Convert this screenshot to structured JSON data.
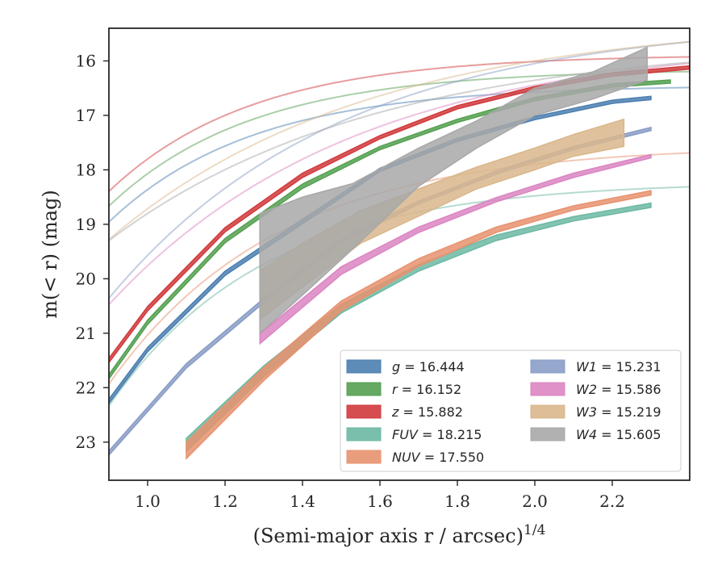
{
  "chart_data": {
    "type": "line",
    "title": "",
    "xlabel": "(Semi-major axis r / arcsec)",
    "xlabel_exponent": "1/4",
    "ylabel": "m(< r) (mag)",
    "xlim": [
      0.9,
      2.4
    ],
    "ylim": [
      23.7,
      15.4
    ],
    "y_inverted": true,
    "grid": false,
    "legend_position": "lower-right",
    "legend_columns": 2,
    "x_ticks": [
      1.0,
      1.2,
      1.4,
      1.6,
      1.8,
      2.0,
      2.2
    ],
    "x_tick_labels": [
      "1.0",
      "1.2",
      "1.4",
      "1.6",
      "1.8",
      "2.0",
      "2.2"
    ],
    "y_ticks": [
      16,
      17,
      18,
      19,
      20,
      21,
      22,
      23
    ],
    "y_tick_labels": [
      "16",
      "17",
      "18",
      "19",
      "20",
      "21",
      "22",
      "23"
    ],
    "series": [
      {
        "name": "g",
        "legend_value": "16.444",
        "color": "#4c7fb0",
        "model_asymptote": 16.444,
        "model_amplitude": 7.4,
        "model_rate": 2.7,
        "data_x": [
          0.9,
          1.0,
          1.2,
          1.4,
          1.6,
          1.8,
          2.0,
          2.2,
          2.3
        ],
        "data_y": [
          22.25,
          21.3,
          19.9,
          18.95,
          18.0,
          17.45,
          17.05,
          16.75,
          16.68
        ],
        "data_err": [
          0.04,
          0.04,
          0.04,
          0.04,
          0.03,
          0.03,
          0.03,
          0.03,
          0.03
        ]
      },
      {
        "name": "r",
        "legend_value": "16.152",
        "color": "#55a051",
        "model_asymptote": 16.152,
        "model_amplitude": 7.4,
        "model_rate": 2.7,
        "data_x": [
          0.9,
          1.0,
          1.2,
          1.4,
          1.6,
          1.8,
          2.0,
          2.2,
          2.35
        ],
        "data_y": [
          21.8,
          20.8,
          19.3,
          18.3,
          17.6,
          17.1,
          16.7,
          16.45,
          16.38
        ],
        "data_err": [
          0.04,
          0.04,
          0.04,
          0.04,
          0.03,
          0.03,
          0.03,
          0.03,
          0.03
        ]
      },
      {
        "name": "z",
        "legend_value": "15.882",
        "color": "#d13a3c",
        "model_asymptote": 15.882,
        "model_amplitude": 7.4,
        "model_rate": 2.7,
        "data_x": [
          0.9,
          1.0,
          1.2,
          1.4,
          1.6,
          1.8,
          2.0,
          2.2,
          2.4
        ],
        "data_y": [
          21.5,
          20.55,
          19.1,
          18.1,
          17.4,
          16.85,
          16.5,
          16.25,
          16.12
        ],
        "data_err": [
          0.04,
          0.04,
          0.04,
          0.04,
          0.03,
          0.03,
          0.03,
          0.03,
          0.03
        ]
      },
      {
        "name": "FUV",
        "legend_value": "18.215",
        "color": "#6cb8a3",
        "model_asymptote": 18.215,
        "model_amplitude": 11.2,
        "model_rate": 2.5,
        "data_x": [
          1.1,
          1.3,
          1.5,
          1.7,
          1.9,
          2.1,
          2.3
        ],
        "data_y": [
          23.05,
          21.7,
          20.55,
          19.8,
          19.25,
          18.9,
          18.65
        ],
        "data_err": [
          0.12,
          0.1,
          0.08,
          0.06,
          0.05,
          0.04,
          0.04
        ]
      },
      {
        "name": "NUV",
        "legend_value": "17.550",
        "color": "#e8926f",
        "model_asymptote": 17.55,
        "model_amplitude": 11.0,
        "model_rate": 2.3,
        "data_x": [
          1.1,
          1.3,
          1.5,
          1.7,
          1.9,
          2.1,
          2.3
        ],
        "data_y": [
          23.15,
          21.75,
          20.5,
          19.7,
          19.1,
          18.7,
          18.42
        ],
        "data_err": [
          0.15,
          0.12,
          0.09,
          0.07,
          0.05,
          0.04,
          0.04
        ]
      },
      {
        "name": "W1",
        "legend_value": "15.231",
        "color": "#8a9dc6",
        "model_asymptote": 15.231,
        "model_amplitude": 10.0,
        "model_rate": 1.67,
        "data_x": [
          0.9,
          1.1,
          1.3,
          1.5,
          1.7,
          1.9,
          2.1,
          2.3
        ],
        "data_y": [
          23.2,
          21.6,
          20.4,
          19.3,
          18.6,
          18.05,
          17.6,
          17.25
        ],
        "data_err": [
          0.04,
          0.04,
          0.04,
          0.04,
          0.03,
          0.03,
          0.03,
          0.03
        ]
      },
      {
        "name": "W2",
        "legend_value": "15.586",
        "color": "#db85c2",
        "model_asymptote": 15.586,
        "model_amplitude": 9.2,
        "model_rate": 1.58,
        "data_x": [
          1.29,
          1.5,
          1.7,
          1.9,
          2.1,
          2.3
        ],
        "data_y": [
          21.1,
          19.85,
          19.1,
          18.55,
          18.1,
          17.75
        ],
        "data_err": [
          0.09,
          0.07,
          0.05,
          0.04,
          0.04,
          0.03
        ]
      },
      {
        "name": "W3",
        "legend_value": "15.219",
        "color": "#d9b78c",
        "model_asymptote": 15.219,
        "model_amplitude": 7.4,
        "model_rate": 1.5,
        "data_x": [
          1.29,
          1.4,
          1.55,
          1.7,
          1.85,
          2.0,
          2.1,
          2.23
        ],
        "data_y": [
          20.3,
          19.75,
          19.05,
          18.6,
          18.15,
          17.8,
          17.55,
          17.32
        ],
        "data_err": [
          0.45,
          0.4,
          0.3,
          0.25,
          0.2,
          0.2,
          0.2,
          0.25
        ]
      },
      {
        "name": "W4",
        "legend_value": "15.605",
        "color": "#a8a8a8",
        "model_asymptote": 15.605,
        "model_amplitude": 6.6,
        "model_rate": 1.45,
        "data_x": [
          1.29,
          1.4,
          1.53,
          1.7,
          1.85,
          2.0,
          2.15,
          2.29
        ],
        "data_y": [
          19.9,
          19.4,
          18.85,
          17.95,
          17.35,
          16.75,
          16.45,
          16.05
        ],
        "data_err": [
          1.1,
          0.9,
          0.6,
          0.35,
          0.25,
          0.25,
          0.25,
          0.3
        ]
      }
    ]
  }
}
